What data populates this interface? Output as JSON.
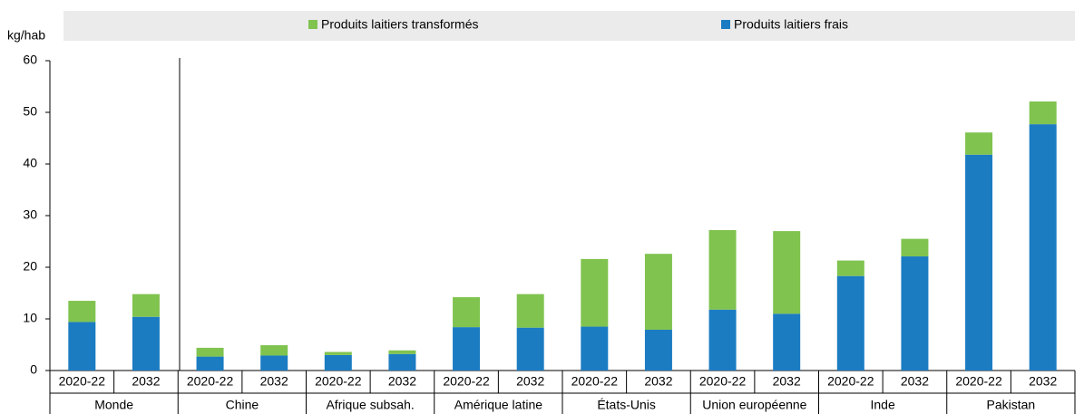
{
  "chart_data": {
    "type": "bar",
    "stacked": true,
    "ylabel": "kg/hab",
    "categories": [
      "2020-22",
      "2032",
      "2020-22",
      "2032",
      "2020-22",
      "2032",
      "2020-22",
      "2032",
      "2020-22",
      "2032",
      "2020-22",
      "2032",
      "2020-22",
      "2032",
      "2020-22",
      "2032"
    ],
    "groups": [
      "Monde",
      "Chine",
      "Afrique subsah.",
      "Amérique latine",
      "États-Unis",
      "Union européenne",
      "Inde",
      "Pakistan"
    ],
    "series": [
      {
        "name": "Produits laitiers transformés",
        "color": "#80c34f",
        "values": [
          4.1,
          4.4,
          1.7,
          2.0,
          0.6,
          0.7,
          5.8,
          6.5,
          13.1,
          14.7,
          15.4,
          16.0,
          3.0,
          3.4,
          4.3,
          4.4
        ]
      },
      {
        "name": "Produits laitiers frais",
        "color": "#1b7cc2",
        "values": [
          9.4,
          10.4,
          2.7,
          2.9,
          3.0,
          3.2,
          8.4,
          8.3,
          8.5,
          7.9,
          11.8,
          11.0,
          18.3,
          22.1,
          41.8,
          47.7
        ]
      }
    ],
    "ylim": [
      0,
      60
    ],
    "yticks": [
      0,
      10,
      20,
      30,
      40,
      50,
      60
    ],
    "grid": false,
    "legend": "top"
  }
}
